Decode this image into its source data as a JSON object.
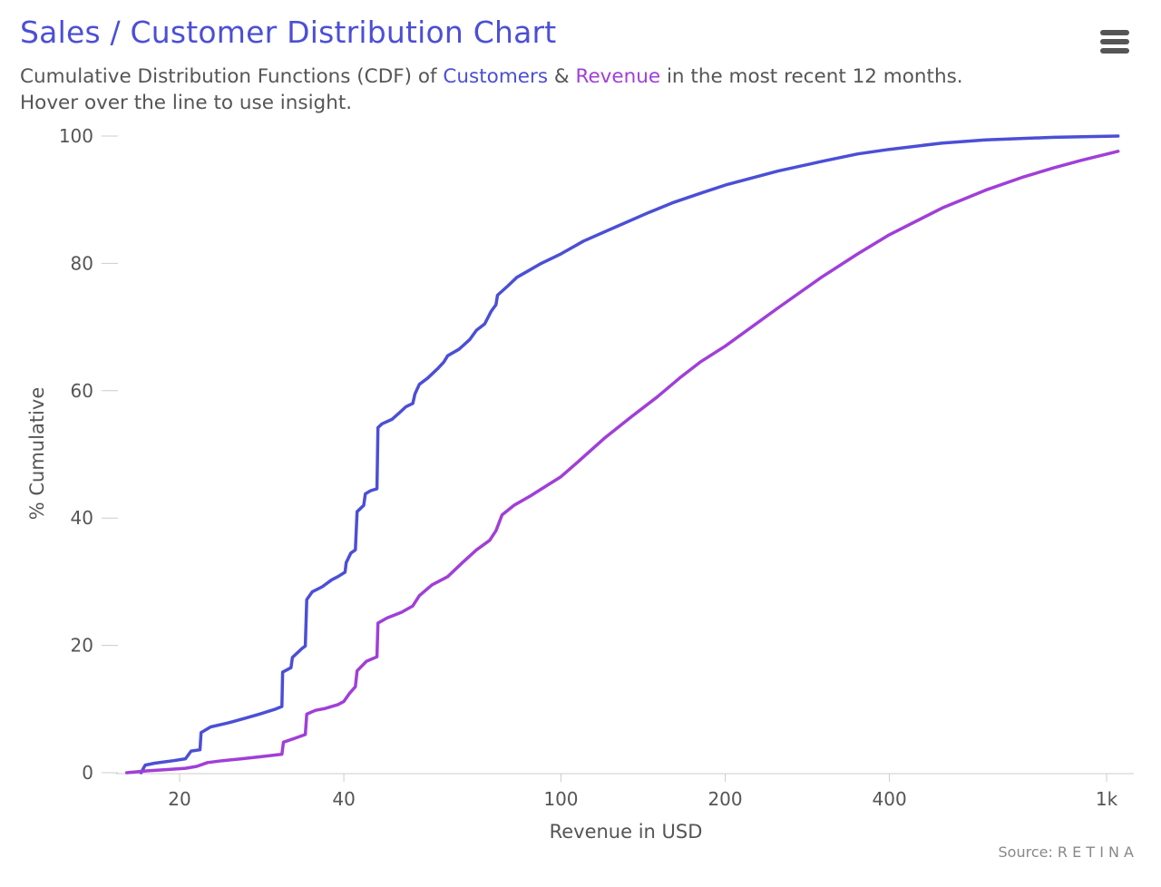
{
  "header": {
    "title": "Sales / Customer Distribution Chart",
    "subtitle_prefix": "Cumulative Distribution Functions (CDF) of ",
    "subtitle_customers": "Customers",
    "subtitle_and": " & ",
    "subtitle_revenue": "Revenue",
    "subtitle_suffix": " in the most recent 12 months.",
    "subtitle_line2": "Hover over the line to use insight."
  },
  "menu": {
    "icon": "hamburger-menu-icon"
  },
  "source": {
    "label": "Source: R E T I N A"
  },
  "colors": {
    "customers": "#4B4FD6",
    "revenue": "#A03FD8",
    "text": "#555555",
    "axis": "#cccccc"
  },
  "chart_data": {
    "type": "line",
    "title": "Sales / Customer Distribution Chart",
    "xlabel": "Revenue in USD",
    "ylabel": "% Cumulative",
    "x_scale": "log",
    "xlim": [
      16,
      1100
    ],
    "ylim": [
      0,
      100
    ],
    "x_ticks": [
      {
        "value": 20,
        "label": "20"
      },
      {
        "value": 40,
        "label": "40"
      },
      {
        "value": 100,
        "label": "100"
      },
      {
        "value": 200,
        "label": "200"
      },
      {
        "value": 400,
        "label": "400"
      },
      {
        "value": 1000,
        "label": "1k"
      }
    ],
    "y_ticks": [
      {
        "value": 0,
        "label": "0"
      },
      {
        "value": 20,
        "label": "20"
      },
      {
        "value": 40,
        "label": "40"
      },
      {
        "value": 60,
        "label": "60"
      },
      {
        "value": 80,
        "label": "80"
      },
      {
        "value": 100,
        "label": "100"
      }
    ],
    "grid": false,
    "series": [
      {
        "name": "Customers",
        "color": "#4B4FD6",
        "points": [
          [
            17.0,
            0
          ],
          [
            17.3,
            1.2
          ],
          [
            18.0,
            1.5
          ],
          [
            19.5,
            1.9
          ],
          [
            20.5,
            2.2
          ],
          [
            21.0,
            3.4
          ],
          [
            21.8,
            3.6
          ],
          [
            21.9,
            6.3
          ],
          [
            22.8,
            7.2
          ],
          [
            24.5,
            7.8
          ],
          [
            26.5,
            8.6
          ],
          [
            28.0,
            9.2
          ],
          [
            30.0,
            10.0
          ],
          [
            30.8,
            10.4
          ],
          [
            30.9,
            15.8
          ],
          [
            32.0,
            16.5
          ],
          [
            32.2,
            18.1
          ],
          [
            33.5,
            19.5
          ],
          [
            34.0,
            19.9
          ],
          [
            34.2,
            27.2
          ],
          [
            35.0,
            28.4
          ],
          [
            36.5,
            29.2
          ],
          [
            38.0,
            30.3
          ],
          [
            39.0,
            30.8
          ],
          [
            40.2,
            31.5
          ],
          [
            40.4,
            33.0
          ],
          [
            41.2,
            34.5
          ],
          [
            42.0,
            35.0
          ],
          [
            42.3,
            41.0
          ],
          [
            43.5,
            42.0
          ],
          [
            43.8,
            43.8
          ],
          [
            44.8,
            44.3
          ],
          [
            46.0,
            44.6
          ],
          [
            46.2,
            54.2
          ],
          [
            47.0,
            54.8
          ],
          [
            49.0,
            55.5
          ],
          [
            50.5,
            56.5
          ],
          [
            52.0,
            57.5
          ],
          [
            53.5,
            58.0
          ],
          [
            54.0,
            59.5
          ],
          [
            55.0,
            61.0
          ],
          [
            57.0,
            62.0
          ],
          [
            59.5,
            63.5
          ],
          [
            61.0,
            64.5
          ],
          [
            62.0,
            65.5
          ],
          [
            65.0,
            66.5
          ],
          [
            68.0,
            68.0
          ],
          [
            70.0,
            69.5
          ],
          [
            72.5,
            70.5
          ],
          [
            74.5,
            72.5
          ],
          [
            76.0,
            73.5
          ],
          [
            76.5,
            75.0
          ],
          [
            80.0,
            76.5
          ],
          [
            83.0,
            77.8
          ],
          [
            87.0,
            78.8
          ],
          [
            92.0,
            80.0
          ],
          [
            100,
            81.5
          ],
          [
            110,
            83.5
          ],
          [
            125,
            85.6
          ],
          [
            145,
            88.0
          ],
          [
            160,
            89.5
          ],
          [
            180,
            91.0
          ],
          [
            200,
            92.3
          ],
          [
            250,
            94.5
          ],
          [
            300,
            96.0
          ],
          [
            350,
            97.2
          ],
          [
            400,
            97.9
          ],
          [
            500,
            98.9
          ],
          [
            600,
            99.4
          ],
          [
            800,
            99.8
          ],
          [
            1050,
            100
          ]
        ]
      },
      {
        "name": "Revenue",
        "color": "#A03FD8",
        "points": [
          [
            16.0,
            0
          ],
          [
            17.5,
            0.3
          ],
          [
            19.0,
            0.5
          ],
          [
            20.5,
            0.7
          ],
          [
            21.5,
            1.0
          ],
          [
            22.5,
            1.6
          ],
          [
            24.0,
            1.9
          ],
          [
            26.0,
            2.2
          ],
          [
            28.0,
            2.5
          ],
          [
            30.8,
            2.9
          ],
          [
            31.0,
            4.8
          ],
          [
            32.5,
            5.4
          ],
          [
            34.0,
            6.0
          ],
          [
            34.2,
            9.2
          ],
          [
            35.5,
            9.8
          ],
          [
            37.0,
            10.1
          ],
          [
            39.0,
            10.7
          ],
          [
            40.0,
            11.2
          ],
          [
            41.0,
            12.5
          ],
          [
            42.0,
            13.5
          ],
          [
            42.3,
            16.0
          ],
          [
            44.0,
            17.5
          ],
          [
            46.0,
            18.2
          ],
          [
            46.2,
            23.5
          ],
          [
            48.0,
            24.3
          ],
          [
            51.0,
            25.2
          ],
          [
            53.5,
            26.2
          ],
          [
            55.0,
            27.8
          ],
          [
            58.0,
            29.5
          ],
          [
            62.0,
            30.8
          ],
          [
            66.0,
            33.0
          ],
          [
            70.0,
            35.0
          ],
          [
            74.0,
            36.5
          ],
          [
            76.0,
            38.0
          ],
          [
            78.0,
            40.5
          ],
          [
            82.0,
            42.0
          ],
          [
            88.0,
            43.5
          ],
          [
            93.0,
            44.8
          ],
          [
            100,
            46.5
          ],
          [
            108,
            49.0
          ],
          [
            120,
            52.5
          ],
          [
            135,
            56.0
          ],
          [
            150,
            59.0
          ],
          [
            165,
            62.0
          ],
          [
            180,
            64.5
          ],
          [
            200,
            67.0
          ],
          [
            250,
            73.0
          ],
          [
            300,
            77.8
          ],
          [
            350,
            81.5
          ],
          [
            400,
            84.5
          ],
          [
            500,
            88.7
          ],
          [
            600,
            91.5
          ],
          [
            700,
            93.5
          ],
          [
            800,
            95.0
          ],
          [
            900,
            96.2
          ],
          [
            1050,
            97.6
          ]
        ]
      }
    ]
  }
}
